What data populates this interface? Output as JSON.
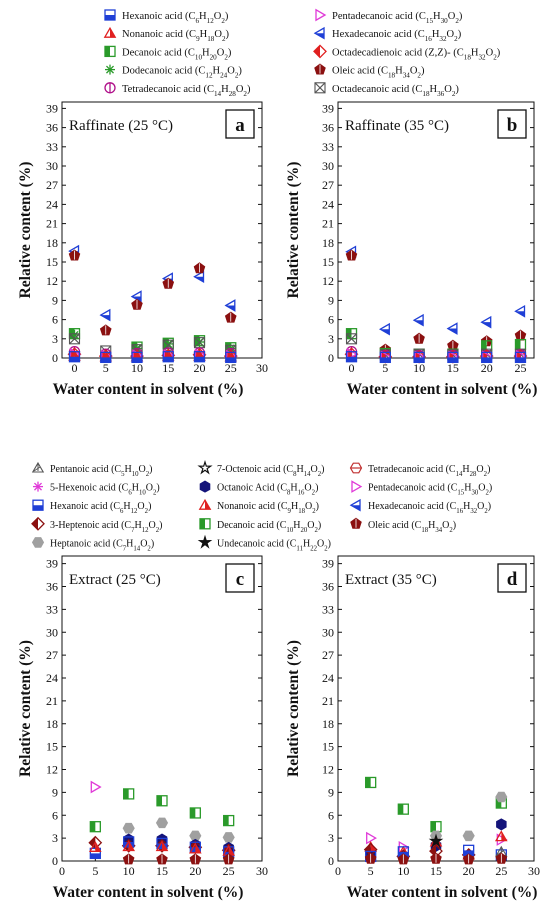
{
  "legend_top": [
    {
      "name": "Hexanoic acid",
      "formula": "(C6H12O2)",
      "marker": "square-half",
      "color": "#1f3fd6"
    },
    {
      "name": "Pentadecanoic acid",
      "formula": "(C15H30O2)",
      "marker": "triangle-right-open",
      "color": "#e03ad8"
    },
    {
      "name": "Nonanoic acid",
      "formula": "(C9H18O2)",
      "marker": "triangle-half",
      "color": "#e02020"
    },
    {
      "name": "Hexadecanoic acid",
      "formula": "(C16H32O2)",
      "marker": "triangle-left-half",
      "color": "#1f3fd6"
    },
    {
      "name": "Decanoic acid",
      "formula": "(C10H20O2)",
      "marker": "square-lefthalf",
      "color": "#2a9a2a"
    },
    {
      "name": "Octadecadienoic acid (Z,Z)-",
      "formula": "(C18H32O2)",
      "marker": "diamond-half",
      "color": "#e02020"
    },
    {
      "name": "Dodecanoic acid",
      "formula": "(C12H24O2)",
      "marker": "asterisk",
      "color": "#2a9a2a"
    },
    {
      "name": "Oleic acid",
      "formula": "(C18H34O2)",
      "marker": "pentagon-half",
      "color": "#8b1010"
    },
    {
      "name": "Tetradecanoic acid",
      "formula": "(C14H28O2)",
      "marker": "circle-bar",
      "color": "#b0108a"
    },
    {
      "name": "Octadecanoic acid",
      "formula": "(C18H36O2)",
      "marker": "square-x",
      "color": "#555555"
    }
  ],
  "legend_bottom": [
    {
      "name": "Pentanoic acid",
      "formula": "(C5H10O2)",
      "marker": "triangle-star",
      "color": "#555555"
    },
    {
      "name": "7-Octenoic acid",
      "formula": "(C8H14O2)",
      "marker": "star-open",
      "color": "#111111"
    },
    {
      "name": "Tetradecanoic acid",
      "formula": "(C14H28O2)",
      "marker": "hexagon-bar",
      "color": "#c03030"
    },
    {
      "name": "5-Hexenoic acid",
      "formula": "(C6H10O2)",
      "marker": "asterisk",
      "color": "#e03ad8"
    },
    {
      "name": "Octanoic Acid",
      "formula": "(C8H16O2)",
      "marker": "hexagon-filled",
      "color": "#14147a"
    },
    {
      "name": "Pentadecanoic acid",
      "formula": "(C15H30O2)",
      "marker": "triangle-right-open",
      "color": "#e03ad8"
    },
    {
      "name": "Hexanoic acid",
      "formula": "(C6H12O2)",
      "marker": "square-half",
      "color": "#1f3fd6"
    },
    {
      "name": "Nonanoic acid",
      "formula": "(C9H18O2)",
      "marker": "triangle-half",
      "color": "#e02020"
    },
    {
      "name": "Hexadecanoic acid",
      "formula": "(C16H32O2)",
      "marker": "triangle-left-half",
      "color": "#1f3fd6"
    },
    {
      "name": "3-Heptenoic acid",
      "formula": "(C7H12O2)",
      "marker": "diamond-half",
      "color": "#8b1010"
    },
    {
      "name": "Decanoic acid",
      "formula": "(C10H20O2)",
      "marker": "square-lefthalf",
      "color": "#2a9a2a"
    },
    {
      "name": "Oleic acid",
      "formula": "(C18H34O2)",
      "marker": "pentagon-half",
      "color": "#8b1010"
    },
    {
      "name": "Heptanoic acid",
      "formula": "(C7H14O2)",
      "marker": "hexagon-gray",
      "color": "#a0a0a0"
    },
    {
      "name": "Undecanoic acid",
      "formula": "(C11H22O2)",
      "marker": "star-filled",
      "color": "#111111"
    }
  ],
  "chart_data": [
    {
      "type": "scatter",
      "panel_letter": "a",
      "inset_title": "Raffinate (25 °C)",
      "xlabel": "Water content in solvent (%)",
      "ylabel": "Relative content (%)",
      "xlim": [
        -2,
        30
      ],
      "ylim": [
        0,
        40
      ],
      "xticks": [
        0,
        5,
        10,
        15,
        20,
        25,
        30
      ],
      "yticks": [
        0,
        3,
        6,
        9,
        12,
        15,
        18,
        21,
        24,
        27,
        30,
        33,
        36,
        39
      ],
      "series": [
        {
          "name": "Hexadecanoic acid",
          "x": [
            0,
            5,
            10,
            15,
            20,
            25
          ],
          "y": [
            16.7,
            6.7,
            9.6,
            12.4,
            12.7,
            8.2
          ]
        },
        {
          "name": "Oleic acid",
          "x": [
            0,
            5,
            10,
            15,
            20,
            25
          ],
          "y": [
            16.0,
            4.3,
            8.3,
            11.6,
            14.0,
            6.3
          ]
        },
        {
          "name": "Decanoic acid",
          "x": [
            0,
            10,
            15,
            20,
            25
          ],
          "y": [
            3.8,
            1.7,
            2.3,
            2.7,
            1.6
          ]
        },
        {
          "name": "Dodecanoic acid",
          "x": [
            0,
            10,
            15,
            20,
            25
          ],
          "y": [
            3.6,
            1.5,
            2.2,
            2.5,
            1.5
          ]
        },
        {
          "name": "Octadecanoic acid",
          "x": [
            0,
            5,
            10,
            15,
            20,
            25
          ],
          "y": [
            3.0,
            1.1,
            1.3,
            2.0,
            2.4,
            1.2
          ]
        },
        {
          "name": "Tetradecanoic acid",
          "x": [
            0,
            5,
            10,
            15,
            20,
            25
          ],
          "y": [
            1.0,
            0.6,
            0.7,
            0.8,
            0.8,
            0.7
          ]
        },
        {
          "name": "Octadecadienoic acid (Z,Z)-",
          "x": [
            0,
            5,
            10,
            15,
            20,
            25
          ],
          "y": [
            0.6,
            0.3,
            0.3,
            0.4,
            0.5,
            0.3
          ]
        },
        {
          "name": "Pentadecanoic acid",
          "x": [
            0,
            5,
            10,
            15,
            20,
            25
          ],
          "y": [
            0.6,
            0.3,
            0.4,
            0.4,
            0.5,
            0.3
          ]
        },
        {
          "name": "Nonanoic acid",
          "x": [
            0,
            5,
            10,
            15,
            20,
            25
          ],
          "y": [
            0.3,
            0.2,
            0.2,
            0.3,
            0.3,
            0.2
          ]
        },
        {
          "name": "Hexanoic acid",
          "x": [
            0,
            5,
            10,
            15,
            20,
            25
          ],
          "y": [
            0.2,
            0.1,
            0.1,
            0.2,
            0.2,
            0.1
          ]
        }
      ]
    },
    {
      "type": "scatter",
      "panel_letter": "b",
      "inset_title": "Raffinate (35 °C)",
      "xlabel": "Water content in solvent (%)",
      "ylabel": "Relative content (%)",
      "xlim": [
        -2,
        27
      ],
      "ylim": [
        0,
        40
      ],
      "xticks": [
        0,
        5,
        10,
        15,
        20,
        25
      ],
      "yticks": [
        0,
        3,
        6,
        9,
        12,
        15,
        18,
        21,
        24,
        27,
        30,
        33,
        36,
        39
      ],
      "series": [
        {
          "name": "Hexadecanoic acid",
          "x": [
            0,
            5,
            10,
            15,
            20,
            25
          ],
          "y": [
            16.6,
            4.5,
            5.9,
            4.6,
            5.6,
            7.3
          ]
        },
        {
          "name": "Oleic acid",
          "x": [
            0,
            5,
            10,
            15,
            20,
            25
          ],
          "y": [
            16.0,
            1.3,
            3.0,
            1.9,
            2.6,
            3.5
          ]
        },
        {
          "name": "Decanoic acid",
          "x": [
            0,
            5,
            10,
            15,
            20,
            25
          ],
          "y": [
            3.8,
            0.7,
            0.6,
            0.6,
            1.9,
            2.1
          ]
        },
        {
          "name": "Octadecanoic acid",
          "x": [
            0,
            5,
            10,
            15,
            20,
            25
          ],
          "y": [
            3.0,
            0.5,
            0.6,
            0.5,
            0.6,
            0.6
          ]
        },
        {
          "name": "Tetradecanoic acid",
          "x": [
            0,
            5,
            10,
            15,
            20,
            25
          ],
          "y": [
            1.0,
            0.4,
            0.4,
            0.4,
            0.4,
            0.5
          ]
        },
        {
          "name": "Octadecadienoic acid (Z,Z)-",
          "x": [
            0,
            5,
            10,
            15,
            20,
            25
          ],
          "y": [
            0.6,
            0.2,
            0.2,
            0.2,
            0.3,
            0.3
          ]
        },
        {
          "name": "Pentadecanoic acid",
          "x": [
            0,
            5,
            10,
            15,
            20,
            25
          ],
          "y": [
            0.6,
            0.2,
            0.2,
            0.2,
            0.2,
            0.3
          ]
        },
        {
          "name": "Hexanoic acid",
          "x": [
            0,
            5,
            10,
            15,
            20,
            25
          ],
          "y": [
            0.2,
            0.1,
            0.1,
            0.1,
            0.1,
            0.1
          ]
        }
      ]
    },
    {
      "type": "scatter",
      "panel_letter": "c",
      "inset_title": "Extract (25 °C)",
      "xlabel": "Water content in solvent (%)",
      "ylabel": "Relative content (%)",
      "xlim": [
        0,
        30
      ],
      "ylim": [
        0,
        40
      ],
      "xticks": [
        0,
        5,
        10,
        15,
        20,
        25,
        30
      ],
      "yticks": [
        0,
        3,
        6,
        9,
        12,
        15,
        18,
        21,
        24,
        27,
        30,
        33,
        36,
        39
      ],
      "series": [
        {
          "name": "Pentadecanoic acid",
          "x": [
            5
          ],
          "y": [
            9.7
          ]
        },
        {
          "name": "Decanoic acid",
          "x": [
            5,
            10,
            15,
            20,
            25
          ],
          "y": [
            4.5,
            8.8,
            7.9,
            6.3,
            5.3
          ]
        },
        {
          "name": "Heptanoic acid",
          "x": [
            10,
            15,
            20,
            25
          ],
          "y": [
            4.3,
            5.0,
            3.3,
            3.1
          ]
        },
        {
          "name": "Octanoic Acid",
          "x": [
            10,
            15,
            20,
            25
          ],
          "y": [
            2.8,
            2.8,
            2.1,
            1.7
          ]
        },
        {
          "name": "3-Heptenoic acid",
          "x": [
            5,
            10,
            15,
            20,
            25
          ],
          "y": [
            2.4,
            2.0,
            2.0,
            1.8,
            1.4
          ]
        },
        {
          "name": "Hexanoic acid",
          "x": [
            5,
            10,
            15,
            20,
            25
          ],
          "y": [
            1.0,
            2.5,
            2.3,
            1.8,
            1.2
          ]
        },
        {
          "name": "Nonanoic acid",
          "x": [
            5,
            10,
            15,
            20,
            25
          ],
          "y": [
            1.8,
            1.9,
            1.9,
            1.6,
            1.3
          ]
        },
        {
          "name": "Oleic acid",
          "x": [
            10,
            15,
            20,
            25
          ],
          "y": [
            0.2,
            0.2,
            0.2,
            0.2
          ]
        }
      ]
    },
    {
      "type": "scatter",
      "panel_letter": "d",
      "inset_title": "Extract (35 °C)",
      "xlabel": "Water content in solvent (%)",
      "ylabel": "Relative content (%)",
      "xlim": [
        0,
        30
      ],
      "ylim": [
        0,
        40
      ],
      "xticks": [
        0,
        5,
        10,
        15,
        20,
        25,
        30
      ],
      "yticks": [
        0,
        3,
        6,
        9,
        12,
        15,
        18,
        21,
        24,
        27,
        30,
        33,
        36,
        39
      ],
      "series": [
        {
          "name": "Decanoic acid",
          "x": [
            5,
            10,
            15,
            25
          ],
          "y": [
            10.3,
            6.8,
            4.5,
            7.6
          ]
        },
        {
          "name": "Heptanoic acid",
          "x": [
            15,
            20,
            25
          ],
          "y": [
            3.3,
            3.3,
            8.4
          ]
        },
        {
          "name": "Octanoic Acid",
          "x": [
            5,
            15,
            25
          ],
          "y": [
            1.0,
            2.0,
            4.8
          ]
        },
        {
          "name": "Pentadecanoic acid",
          "x": [
            5,
            10,
            25
          ],
          "y": [
            3.0,
            1.8,
            2.8
          ]
        },
        {
          "name": "Nonanoic acid",
          "x": [
            5,
            10,
            15,
            20,
            25
          ],
          "y": [
            1.8,
            1.2,
            2.5,
            0.8,
            3.2
          ]
        },
        {
          "name": "3-Heptenoic acid",
          "x": [
            5,
            10,
            15,
            20
          ],
          "y": [
            1.5,
            0.6,
            1.3,
            0.8
          ]
        },
        {
          "name": "Hexanoic acid",
          "x": [
            5,
            10,
            20,
            25
          ],
          "y": [
            0.6,
            1.2,
            1.4,
            0.8
          ]
        },
        {
          "name": "Undecanoic acid",
          "x": [
            15
          ],
          "y": [
            2.6
          ]
        },
        {
          "name": "Pentanoic acid",
          "x": [
            25
          ],
          "y": [
            1.2
          ]
        },
        {
          "name": "Oleic acid",
          "x": [
            5,
            10,
            15,
            20,
            25
          ],
          "y": [
            0.3,
            0.2,
            0.3,
            0.2,
            0.3
          ]
        }
      ]
    }
  ]
}
